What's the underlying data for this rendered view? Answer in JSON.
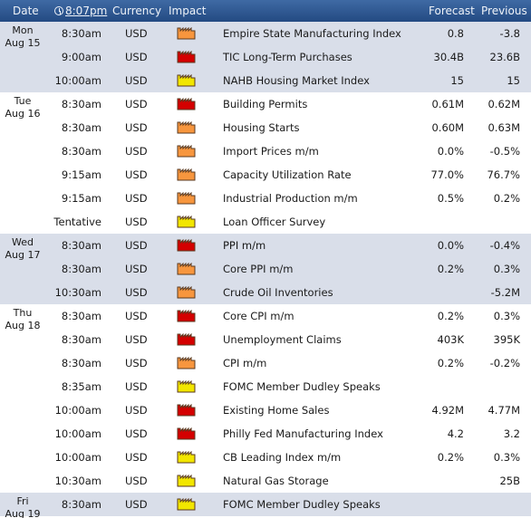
{
  "header": {
    "date_label": "Date",
    "time_label": "8:07pm",
    "currency_label": "Currency",
    "impact_label": "Impact",
    "forecast_label": "Forecast",
    "previous_label": "Previous"
  },
  "impact_colors": {
    "high": "#d40000",
    "medium": "#f7963e",
    "low": "#f2e600"
  },
  "days": [
    {
      "day": "Mon",
      "date": "Aug 15",
      "events": [
        {
          "time": "8:30am",
          "currency": "USD",
          "impact": "medium",
          "title": "Empire State Manufacturing Index",
          "forecast": "0.8",
          "previous": "-3.8"
        },
        {
          "time": "9:00am",
          "currency": "USD",
          "impact": "high",
          "title": "TIC Long-Term Purchases",
          "forecast": "30.4B",
          "previous": "23.6B"
        },
        {
          "time": "10:00am",
          "currency": "USD",
          "impact": "low",
          "title": "NAHB Housing Market Index",
          "forecast": "15",
          "previous": "15"
        }
      ]
    },
    {
      "day": "Tue",
      "date": "Aug 16",
      "events": [
        {
          "time": "8:30am",
          "currency": "USD",
          "impact": "high",
          "title": "Building Permits",
          "forecast": "0.61M",
          "previous": "0.62M"
        },
        {
          "time": "8:30am",
          "currency": "USD",
          "impact": "medium",
          "title": "Housing Starts",
          "forecast": "0.60M",
          "previous": "0.63M"
        },
        {
          "time": "8:30am",
          "currency": "USD",
          "impact": "medium",
          "title": "Import Prices m/m",
          "forecast": "0.0%",
          "previous": "-0.5%"
        },
        {
          "time": "9:15am",
          "currency": "USD",
          "impact": "medium",
          "title": "Capacity Utilization Rate",
          "forecast": "77.0%",
          "previous": "76.7%"
        },
        {
          "time": "9:15am",
          "currency": "USD",
          "impact": "medium",
          "title": "Industrial Production m/m",
          "forecast": "0.5%",
          "previous": "0.2%"
        },
        {
          "time": "Tentative",
          "currency": "USD",
          "impact": "low",
          "title": "Loan Officer Survey",
          "forecast": "",
          "previous": ""
        }
      ]
    },
    {
      "day": "Wed",
      "date": "Aug 17",
      "events": [
        {
          "time": "8:30am",
          "currency": "USD",
          "impact": "high",
          "title": "PPI m/m",
          "forecast": "0.0%",
          "previous": "-0.4%"
        },
        {
          "time": "8:30am",
          "currency": "USD",
          "impact": "medium",
          "title": "Core PPI m/m",
          "forecast": "0.2%",
          "previous": "0.3%"
        },
        {
          "time": "10:30am",
          "currency": "USD",
          "impact": "medium",
          "title": "Crude Oil Inventories",
          "forecast": "",
          "previous": "-5.2M"
        }
      ]
    },
    {
      "day": "Thu",
      "date": "Aug 18",
      "events": [
        {
          "time": "8:30am",
          "currency": "USD",
          "impact": "high",
          "title": "Core CPI m/m",
          "forecast": "0.2%",
          "previous": "0.3%"
        },
        {
          "time": "8:30am",
          "currency": "USD",
          "impact": "high",
          "title": "Unemployment Claims",
          "forecast": "403K",
          "previous": "395K"
        },
        {
          "time": "8:30am",
          "currency": "USD",
          "impact": "medium",
          "title": "CPI m/m",
          "forecast": "0.2%",
          "previous": "-0.2%"
        },
        {
          "time": "8:35am",
          "currency": "USD",
          "impact": "low",
          "title": "FOMC Member Dudley Speaks",
          "forecast": "",
          "previous": ""
        },
        {
          "time": "10:00am",
          "currency": "USD",
          "impact": "high",
          "title": "Existing Home Sales",
          "forecast": "4.92M",
          "previous": "4.77M"
        },
        {
          "time": "10:00am",
          "currency": "USD",
          "impact": "high",
          "title": "Philly Fed Manufacturing Index",
          "forecast": "4.2",
          "previous": "3.2"
        },
        {
          "time": "10:00am",
          "currency": "USD",
          "impact": "low",
          "title": "CB Leading Index m/m",
          "forecast": "0.2%",
          "previous": "0.3%"
        },
        {
          "time": "10:30am",
          "currency": "USD",
          "impact": "low",
          "title": "Natural Gas Storage",
          "forecast": "",
          "previous": "25B"
        }
      ]
    },
    {
      "day": "Fri",
      "date": "Aug 19",
      "events": [
        {
          "time": "8:30am",
          "currency": "USD",
          "impact": "low",
          "title": "FOMC Member Dudley Speaks",
          "forecast": "",
          "previous": ""
        }
      ]
    }
  ]
}
